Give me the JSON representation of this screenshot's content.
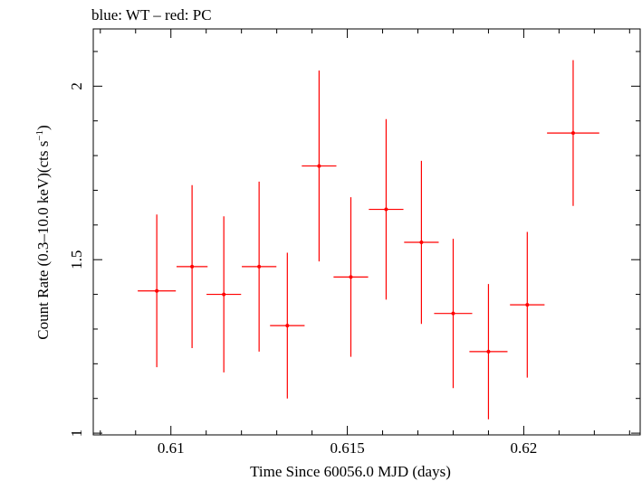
{
  "chart_data": {
    "type": "scatter",
    "title": "blue: WT – red: PC",
    "xlabel": "Time Since 60056.0 MJD (days)",
    "ylabel_main": "Count Rate (0.3–10.0 keV)(cts s",
    "ylabel_sup": "−1",
    "ylabel_close": ")",
    "xlim": [
      0.6078,
      0.6233
    ],
    "ylim": [
      0.995,
      2.165
    ],
    "xticks": [
      {
        "value": 0.61,
        "label": "0.61"
      },
      {
        "value": 0.615,
        "label": "0.615"
      },
      {
        "value": 0.62,
        "label": "0.62"
      }
    ],
    "yticks": [
      {
        "value": 1.0,
        "label": "1"
      },
      {
        "value": 1.5,
        "label": "1.5"
      },
      {
        "value": 2.0,
        "label": "2"
      }
    ],
    "x_minor_step": 0.001,
    "y_minor_step": 0.1,
    "grid": false,
    "series": [
      {
        "color": "#ff0000",
        "points": [
          {
            "x": 0.6096,
            "y": 1.41,
            "xerr": 0.00054,
            "yerr_low": 0.22,
            "yerr_high": 0.22
          },
          {
            "x": 0.6106,
            "y": 1.48,
            "xerr": 0.00044,
            "yerr_low": 0.235,
            "yerr_high": 0.235
          },
          {
            "x": 0.6115,
            "y": 1.4,
            "xerr": 0.00049,
            "yerr_low": 0.225,
            "yerr_high": 0.225
          },
          {
            "x": 0.6125,
            "y": 1.48,
            "xerr": 0.00049,
            "yerr_low": 0.245,
            "yerr_high": 0.245
          },
          {
            "x": 0.6133,
            "y": 1.31,
            "xerr": 0.00049,
            "yerr_low": 0.21,
            "yerr_high": 0.21
          },
          {
            "x": 0.6142,
            "y": 1.77,
            "xerr": 0.00049,
            "yerr_low": 0.275,
            "yerr_high": 0.275
          },
          {
            "x": 0.6151,
            "y": 1.45,
            "xerr": 0.00049,
            "yerr_low": 0.23,
            "yerr_high": 0.23
          },
          {
            "x": 0.6161,
            "y": 1.645,
            "xerr": 0.00049,
            "yerr_low": 0.26,
            "yerr_high": 0.26
          },
          {
            "x": 0.6171,
            "y": 1.55,
            "xerr": 0.00049,
            "yerr_low": 0.235,
            "yerr_high": 0.235
          },
          {
            "x": 0.618,
            "y": 1.345,
            "xerr": 0.00054,
            "yerr_low": 0.215,
            "yerr_high": 0.215
          },
          {
            "x": 0.619,
            "y": 1.235,
            "xerr": 0.00054,
            "yerr_low": 0.195,
            "yerr_high": 0.195
          },
          {
            "x": 0.6201,
            "y": 1.37,
            "xerr": 0.00049,
            "yerr_low": 0.21,
            "yerr_high": 0.21
          },
          {
            "x": 0.6214,
            "y": 1.865,
            "xerr": 0.00074,
            "yerr_low": 0.21,
            "yerr_high": 0.21
          }
        ]
      }
    ]
  }
}
